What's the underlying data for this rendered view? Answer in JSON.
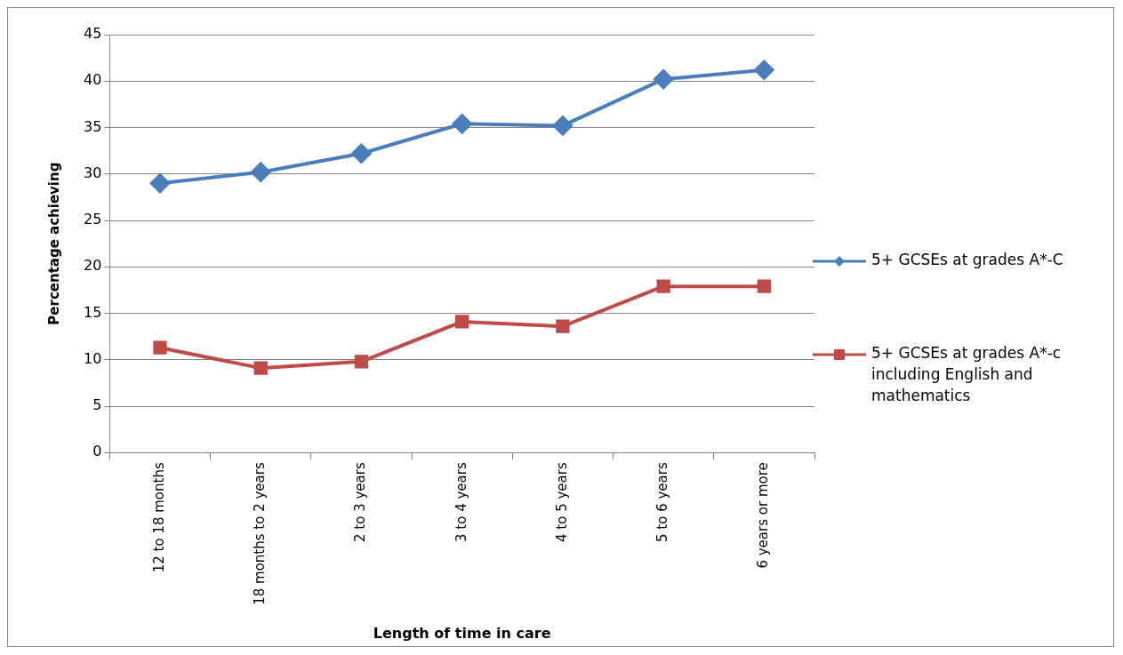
{
  "chart_data": {
    "type": "line",
    "xlabel": "Length of time in care",
    "ylabel": "Percentage achieving",
    "categories": [
      "12 to 18 months",
      "18 months to 2 years",
      "2 to 3 years",
      "3 to 4 years",
      "4 to 5 years",
      "5 to 6 years",
      "6 years or more"
    ],
    "series": [
      {
        "name": "5+ GCSEs at grades A*-C",
        "color": "#4a7ebb",
        "marker": "diamond",
        "values": [
          29,
          30.2,
          32.2,
          35.4,
          35.2,
          40.2,
          41.2
        ]
      },
      {
        "name": "5+ GCSEs at grades A*-c including English and mathematics",
        "color": "#be4b48",
        "marker": "square",
        "values": [
          11.3,
          9.1,
          9.8,
          14.1,
          13.6,
          17.9,
          17.9
        ]
      }
    ],
    "ylim": [
      0,
      45
    ],
    "yticks": [
      0,
      5,
      10,
      15,
      20,
      25,
      30,
      35,
      40,
      45
    ],
    "grid": "y",
    "legend": "right",
    "line_style": "solid"
  }
}
